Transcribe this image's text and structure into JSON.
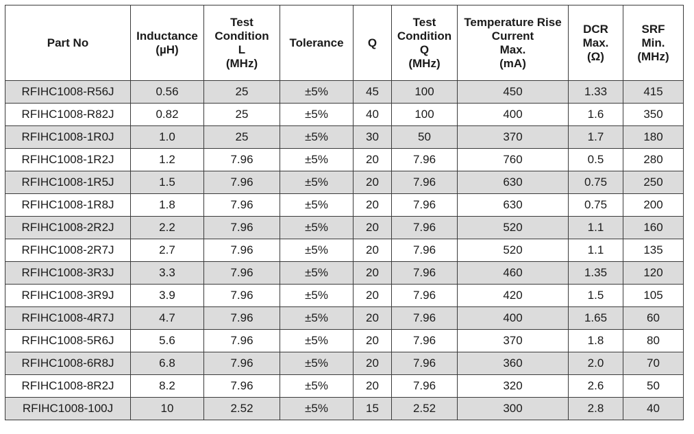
{
  "headers": [
    {
      "key": "part_no",
      "lines": [
        "Part No"
      ]
    },
    {
      "key": "inductance",
      "lines": [
        "Inductance",
        "(µH)"
      ]
    },
    {
      "key": "test_l",
      "lines": [
        "Test",
        "Condition",
        "L",
        "(MHz)"
      ]
    },
    {
      "key": "tolerance",
      "lines": [
        "Tolerance"
      ]
    },
    {
      "key": "q",
      "lines": [
        "Q"
      ]
    },
    {
      "key": "test_q",
      "lines": [
        "Test",
        "Condition",
        "Q",
        "(MHz)"
      ]
    },
    {
      "key": "temp_rise",
      "lines": [
        "Temperature Rise",
        "Current",
        "Max.",
        "(mA)"
      ]
    },
    {
      "key": "dcr",
      "lines": [
        "DCR",
        "Max.",
        "(Ω)"
      ]
    },
    {
      "key": "srf",
      "lines": [
        "SRF",
        "Min.",
        "(MHz)"
      ]
    }
  ],
  "rows": [
    [
      "RFIHC1008-R56J",
      "0.56",
      "25",
      "±5%",
      "45",
      "100",
      "450",
      "1.33",
      "415"
    ],
    [
      "RFIHC1008-R82J",
      "0.82",
      "25",
      "±5%",
      "40",
      "100",
      "400",
      "1.6",
      "350"
    ],
    [
      "RFIHC1008-1R0J",
      "1.0",
      "25",
      "±5%",
      "30",
      "50",
      "370",
      "1.7",
      "180"
    ],
    [
      "RFIHC1008-1R2J",
      "1.2",
      "7.96",
      "±5%",
      "20",
      "7.96",
      "760",
      "0.5",
      "280"
    ],
    [
      "RFIHC1008-1R5J",
      "1.5",
      "7.96",
      "±5%",
      "20",
      "7.96",
      "630",
      "0.75",
      "250"
    ],
    [
      "RFIHC1008-1R8J",
      "1.8",
      "7.96",
      "±5%",
      "20",
      "7.96",
      "630",
      "0.75",
      "200"
    ],
    [
      "RFIHC1008-2R2J",
      "2.2",
      "7.96",
      "±5%",
      "20",
      "7.96",
      "520",
      "1.1",
      "160"
    ],
    [
      "RFIHC1008-2R7J",
      "2.7",
      "7.96",
      "±5%",
      "20",
      "7.96",
      "520",
      "1.1",
      "135"
    ],
    [
      "RFIHC1008-3R3J",
      "3.3",
      "7.96",
      "±5%",
      "20",
      "7.96",
      "460",
      "1.35",
      "120"
    ],
    [
      "RFIHC1008-3R9J",
      "3.9",
      "7.96",
      "±5%",
      "20",
      "7.96",
      "420",
      "1.5",
      "105"
    ],
    [
      "RFIHC1008-4R7J",
      "4.7",
      "7.96",
      "±5%",
      "20",
      "7.96",
      "400",
      "1.65",
      "60"
    ],
    [
      "RFIHC1008-5R6J",
      "5.6",
      "7.96",
      "±5%",
      "20",
      "7.96",
      "370",
      "1.8",
      "80"
    ],
    [
      "RFIHC1008-6R8J",
      "6.8",
      "7.96",
      "±5%",
      "20",
      "7.96",
      "360",
      "2.0",
      "70"
    ],
    [
      "RFIHC1008-8R2J",
      "8.2",
      "7.96",
      "±5%",
      "20",
      "7.96",
      "320",
      "2.6",
      "50"
    ],
    [
      "RFIHC1008-100J",
      "10",
      "2.52",
      "±5%",
      "15",
      "2.52",
      "300",
      "2.8",
      "40"
    ]
  ],
  "colors": {
    "shaded_row": "#dcdcdc",
    "plain_row": "#ffffff",
    "border": "#3a3a3a"
  }
}
